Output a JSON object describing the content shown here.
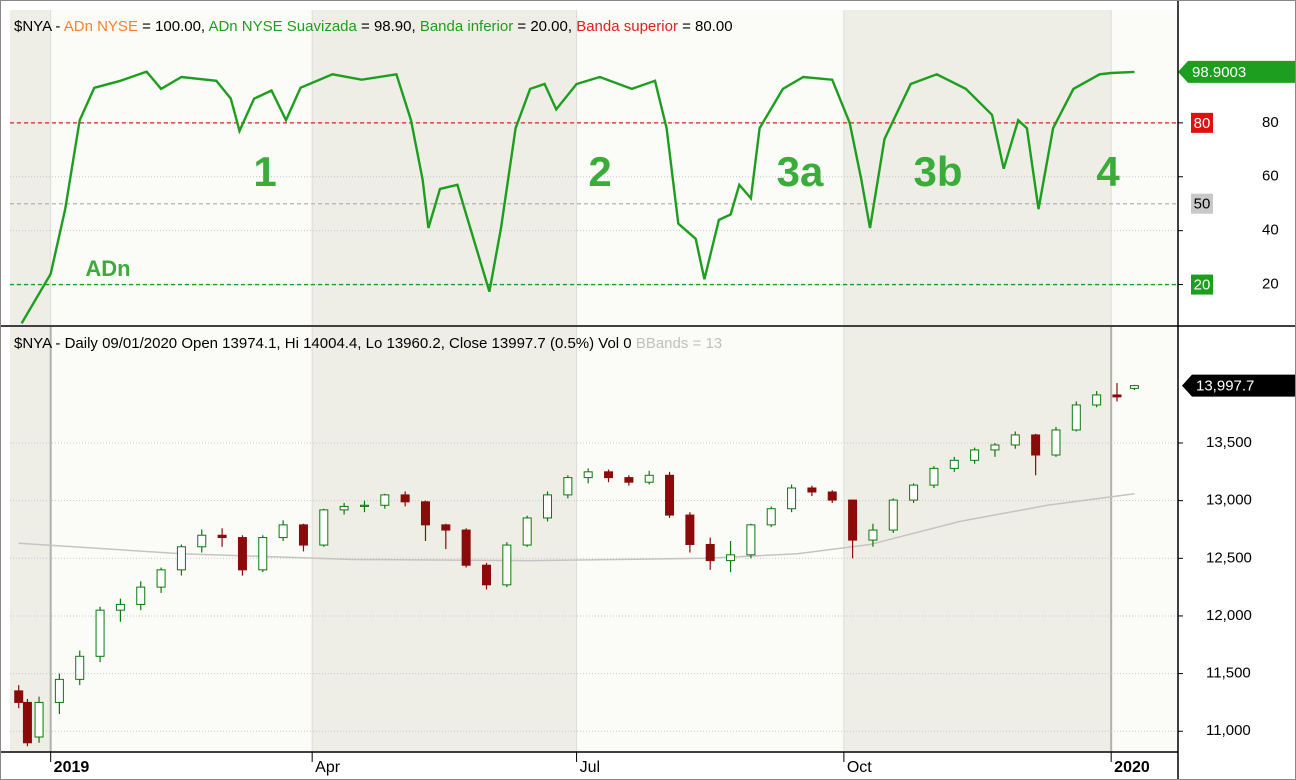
{
  "chart_data": [
    {
      "type": "line",
      "header": [
        {
          "text": "$NYA - ",
          "color": "#000000"
        },
        {
          "text": "ADn NYSE",
          "color": "#ff7f27"
        },
        {
          "text": " = 100.00, ",
          "color": "#000000"
        },
        {
          "text": "ADn NYSE Suavizada",
          "color": "#1e9e1e"
        },
        {
          "text": " = 98.90, ",
          "color": "#000000"
        },
        {
          "text": "Banda inferior",
          "color": "#1e9e1e"
        },
        {
          "text": " = 20.00, ",
          "color": "#000000"
        },
        {
          "text": "Banda superior",
          "color": "#e02020"
        },
        {
          "text": " = 80.00",
          "color": "#000000"
        }
      ],
      "annotations": [
        "1",
        "2",
        "3a",
        "3b",
        "4",
        "ADn"
      ],
      "x": [
        "2018-12-22",
        "2019-01-01",
        "2019-01-06",
        "2019-01-11",
        "2019-01-16",
        "2019-01-25",
        "2019-02-03",
        "2019-02-08",
        "2019-02-15",
        "2019-02-27",
        "2019-03-04",
        "2019-03-07",
        "2019-03-12",
        "2019-03-18",
        "2019-03-23",
        "2019-03-28",
        "2019-04-08",
        "2019-04-18",
        "2019-04-30",
        "2019-05-05",
        "2019-05-09",
        "2019-05-11",
        "2019-05-15",
        "2019-05-21",
        "2019-05-24",
        "2019-06-01",
        "2019-06-05",
        "2019-06-10",
        "2019-06-15",
        "2019-06-20",
        "2019-06-24",
        "2019-07-01",
        "2019-07-09",
        "2019-07-20",
        "2019-07-28",
        "2019-08-01",
        "2019-08-05",
        "2019-08-11",
        "2019-08-14",
        "2019-08-19",
        "2019-08-23",
        "2019-08-26",
        "2019-08-30",
        "2019-09-02",
        "2019-09-10",
        "2019-09-17",
        "2019-09-27",
        "2019-10-03",
        "2019-10-07",
        "2019-10-10",
        "2019-10-15",
        "2019-10-24",
        "2019-11-02",
        "2019-11-12",
        "2019-11-21",
        "2019-11-25",
        "2019-11-30",
        "2019-12-03",
        "2019-12-07",
        "2019-12-12",
        "2019-12-19",
        "2019-12-28",
        "2020-01-01",
        "2020-01-09"
      ],
      "series": [
        {
          "name": "ADn NYSE Suavizada",
          "color": "#1e9e1e",
          "values": [
            5.6,
            24,
            48,
            81,
            93,
            95.6,
            99,
            92.6,
            97,
            95.6,
            89,
            77,
            89,
            92,
            81,
            93,
            98,
            96,
            98,
            81,
            59,
            41,
            55.5,
            57,
            46,
            17.4,
            41,
            78,
            92.6,
            94.4,
            85,
            94.4,
            97,
            92.6,
            95.6,
            78,
            42.6,
            37,
            22,
            44,
            46,
            57,
            52,
            78,
            92.6,
            97,
            96,
            80,
            59,
            41,
            74,
            94.4,
            98,
            92.6,
            83,
            63,
            81,
            78,
            48,
            78,
            92.6,
            98,
            98.5,
            98.9003
          ]
        }
      ],
      "bands": [
        {
          "value": 80,
          "color": "#e02020",
          "box": "#e01010"
        },
        {
          "value": 50,
          "color": "#b4b4b4",
          "box": "#c8c8c8"
        },
        {
          "value": 20,
          "color": "#1e9e1e",
          "box": "#1e9e1e"
        }
      ],
      "xlim": [
        "2018-12-18",
        "2020-01-24"
      ],
      "xticks": [
        "2019-01-01",
        "2019-04-01",
        "2019-07-01",
        "2019-10-01",
        "2020-01-01"
      ],
      "ylim": [
        5,
        110
      ],
      "yticks": [
        20,
        40,
        60,
        80
      ],
      "grid": true
    },
    {
      "type": "candlestick",
      "header": [
        {
          "text": "$NYA - Daily 09/01/2020 Open 13974.1, Hi 14004.4, Lo 13960.2, Close 13997.7 (0.5%) Vol 0 ",
          "color": "#000000"
        },
        {
          "text": "BBands = 13",
          "color": "#c0c0c0"
        }
      ],
      "up_color": "#0a7a0a",
      "down_color": "#8b0a0a",
      "x": [
        "2018-12-21",
        "2018-12-24",
        "2018-12-28",
        "2019-01-04",
        "2019-01-11",
        "2019-01-18",
        "2019-01-25",
        "2019-02-01",
        "2019-02-08",
        "2019-02-15",
        "2019-02-22",
        "2019-03-01",
        "2019-03-08",
        "2019-03-15",
        "2019-03-22",
        "2019-03-29",
        "2019-04-05",
        "2019-04-12",
        "2019-04-19",
        "2019-04-26",
        "2019-05-03",
        "2019-05-10",
        "2019-05-17",
        "2019-05-24",
        "2019-05-31",
        "2019-06-07",
        "2019-06-14",
        "2019-06-21",
        "2019-06-28",
        "2019-07-05",
        "2019-07-12",
        "2019-07-19",
        "2019-07-26",
        "2019-08-02",
        "2019-08-09",
        "2019-08-16",
        "2019-08-23",
        "2019-08-30",
        "2019-09-06",
        "2019-09-13",
        "2019-09-20",
        "2019-09-27",
        "2019-10-04",
        "2019-10-11",
        "2019-10-18",
        "2019-10-25",
        "2019-11-01",
        "2019-11-08",
        "2019-11-15",
        "2019-11-22",
        "2019-11-29",
        "2019-12-06",
        "2019-12-13",
        "2019-12-20",
        "2019-12-27",
        "2020-01-03",
        "2020-01-09"
      ],
      "open": [
        11350,
        11250,
        10950,
        11250,
        11450,
        11650,
        12050,
        12100,
        12250,
        12400,
        12600,
        12700,
        12680,
        12400,
        12680,
        12790,
        12615,
        12920,
        12950,
        12960,
        13050,
        12990,
        12790,
        12745,
        12440,
        12270,
        12615,
        12850,
        13050,
        13200,
        13250,
        13200,
        13160,
        13220,
        12875,
        12620,
        12480,
        12530,
        12790,
        12930,
        13110,
        13075,
        13005,
        12658,
        12745,
        13005,
        13135,
        13280,
        13350,
        13440,
        13483,
        13570,
        13396,
        13613,
        13830,
        13917,
        13974.1
      ],
      "high": [
        11400,
        11280,
        11300,
        11500,
        11700,
        12080,
        12150,
        12300,
        12420,
        12620,
        12750,
        12760,
        12700,
        12700,
        12830,
        12800,
        12930,
        12980,
        13000,
        13060,
        13080,
        13000,
        12800,
        12760,
        12460,
        12640,
        12870,
        13080,
        13220,
        13280,
        13270,
        13220,
        13260,
        13250,
        12900,
        12680,
        12650,
        12800,
        12950,
        13140,
        13130,
        13090,
        13010,
        12800,
        13020,
        13150,
        13300,
        13380,
        13460,
        13500,
        13600,
        13580,
        13640,
        13860,
        13950,
        14020,
        14004.4
      ],
      "low": [
        11200,
        10870,
        10900,
        11150,
        11400,
        11600,
        11950,
        12050,
        12200,
        12350,
        12550,
        12600,
        12350,
        12380,
        12650,
        12560,
        12600,
        12880,
        12900,
        12930,
        12950,
        12650,
        12580,
        12420,
        12230,
        12250,
        12600,
        12820,
        13020,
        13150,
        13160,
        13130,
        13140,
        12850,
        12550,
        12400,
        12380,
        12500,
        12770,
        12900,
        13040,
        12980,
        12500,
        12600,
        12720,
        12980,
        13110,
        13250,
        13320,
        13380,
        13450,
        13220,
        13380,
        13600,
        13810,
        13860,
        13960.2
      ],
      "close": [
        11250,
        10900,
        11250,
        11450,
        11650,
        12050,
        12100,
        12250,
        12400,
        12600,
        12700,
        12680,
        12400,
        12680,
        12790,
        12615,
        12920,
        12950,
        12960,
        13050,
        12990,
        12790,
        12745,
        12440,
        12270,
        12615,
        12850,
        13050,
        13200,
        13250,
        13200,
        13160,
        13220,
        12875,
        12620,
        12480,
        12530,
        12790,
        12930,
        13110,
        13075,
        13005,
        12658,
        12745,
        13005,
        13135,
        13280,
        13350,
        13440,
        13483,
        13570,
        13396,
        13613,
        13830,
        13917,
        13900,
        13997.7
      ],
      "close_label": "13,997.7",
      "overlay": {
        "color": "#c4c4c4",
        "x": [
          "2018-12-21",
          "2019-02-15",
          "2019-04-15",
          "2019-06-15",
          "2019-08-15",
          "2019-09-15",
          "2019-10-10",
          "2019-11-10",
          "2019-12-10",
          "2020-01-09"
        ],
        "values": [
          12630,
          12540,
          12490,
          12480,
          12500,
          12540,
          12620,
          12820,
          12960,
          13060
        ]
      },
      "xlim": [
        "2018-12-18",
        "2020-01-24"
      ],
      "xticks": [
        {
          "value": "2019-01-01",
          "label": "2019"
        },
        {
          "value": "2019-04-01",
          "label": "Apr"
        },
        {
          "value": "2019-07-01",
          "label": "Jul"
        },
        {
          "value": "2019-10-01",
          "label": "Oct"
        },
        {
          "value": "2020-01-01",
          "label": "2020"
        }
      ],
      "ylim": [
        10820,
        14220
      ],
      "yticks": [
        {
          "value": 11000,
          "label": "11,000"
        },
        {
          "value": 11500,
          "label": "11,500"
        },
        {
          "value": 12000,
          "label": "12,000"
        },
        {
          "value": 12500,
          "label": "12,500"
        },
        {
          "value": 13000,
          "label": "13,000"
        },
        {
          "value": 13500,
          "label": "13,500"
        }
      ],
      "grid": true
    }
  ]
}
